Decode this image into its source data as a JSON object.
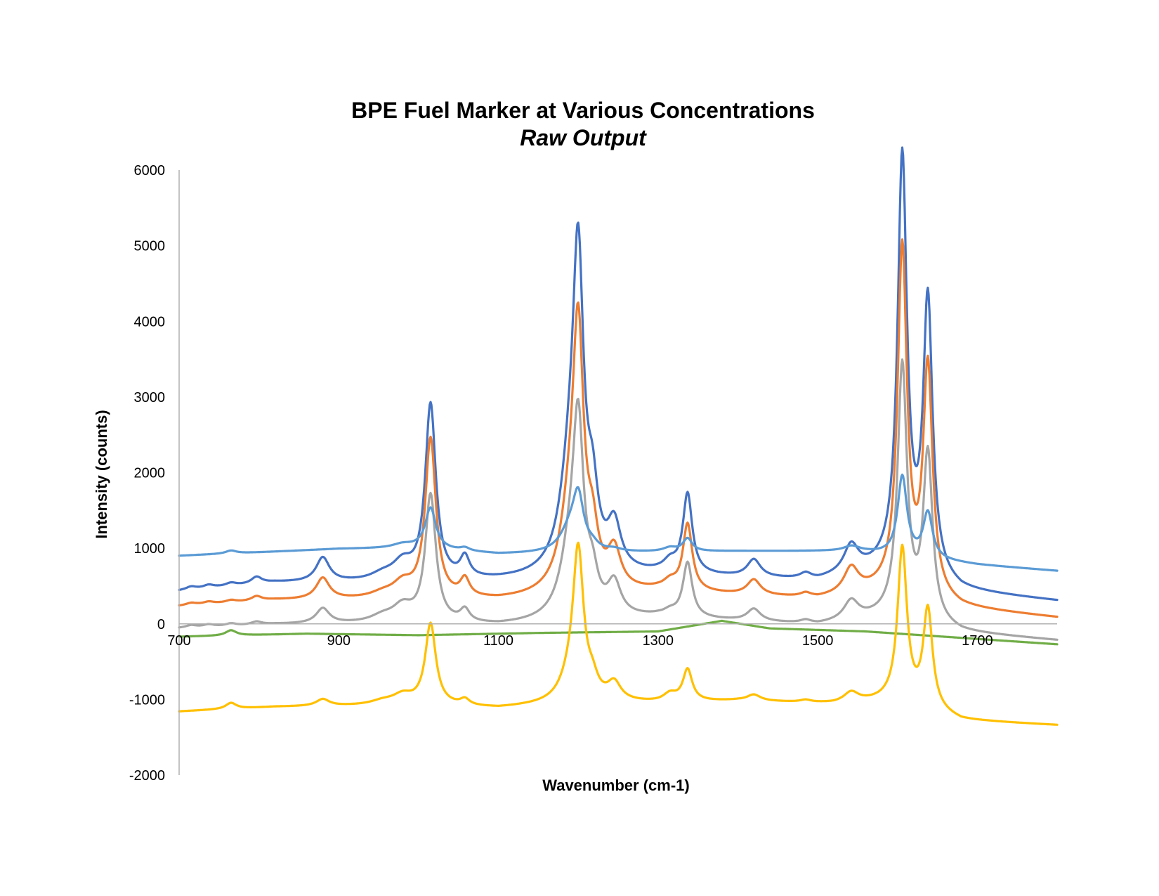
{
  "chart_data": {
    "type": "line",
    "title": "BPE Fuel Marker at Various Concentrations",
    "subtitle": "Raw Output",
    "xlabel": "Wavenumber (cm-1)",
    "ylabel": "Intensity (counts)",
    "xlim": [
      700,
      1800
    ],
    "ylim": [
      -2000,
      6000
    ],
    "x_ticks": [
      700,
      900,
      1100,
      1300,
      1500,
      1700
    ],
    "y_ticks": [
      6000,
      5000,
      4000,
      3000,
      2000,
      1000,
      0,
      -1000,
      -2000
    ],
    "grid": false,
    "legend": "none",
    "peaks": [
      {
        "c": 715,
        "w": 8
      },
      {
        "c": 737,
        "w": 8
      },
      {
        "c": 765,
        "w": 8
      },
      {
        "c": 797,
        "w": 8
      },
      {
        "c": 880,
        "w": 10
      },
      {
        "c": 955,
        "w": 18
      },
      {
        "c": 980,
        "w": 15
      },
      {
        "c": 1015,
        "w": 8
      },
      {
        "c": 1058,
        "w": 7
      },
      {
        "c": 1190,
        "w": 15
      },
      {
        "c": 1200,
        "w": 8
      },
      {
        "c": 1218,
        "w": 8
      },
      {
        "c": 1245,
        "w": 10
      },
      {
        "c": 1315,
        "w": 10
      },
      {
        "c": 1337,
        "w": 7
      },
      {
        "c": 1420,
        "w": 10
      },
      {
        "c": 1485,
        "w": 8
      },
      {
        "c": 1542,
        "w": 11
      },
      {
        "c": 1606,
        "w": 7
      },
      {
        "c": 1638,
        "w": 7
      }
    ],
    "series": [
      {
        "color": "#4472C4",
        "baseline": [
          [
            700,
            430
          ],
          [
            820,
            540
          ],
          [
            1000,
            540
          ],
          [
            1100,
            560
          ],
          [
            1300,
            640
          ],
          [
            1500,
            560
          ],
          [
            1600,
            740
          ],
          [
            1680,
            420
          ],
          [
            1800,
            300
          ]
        ],
        "amplitudes": [
          40,
          40,
          40,
          90,
          320,
          80,
          220,
          2320,
          270,
          1200,
          3700,
          800,
          590,
          130,
          1050,
          230,
          70,
          360,
          5400,
          3600
        ]
      },
      {
        "color": "#ED7D31",
        "baseline": [
          [
            700,
            230
          ],
          [
            820,
            310
          ],
          [
            1000,
            320
          ],
          [
            1100,
            300
          ],
          [
            1300,
            420
          ],
          [
            1500,
            320
          ],
          [
            1600,
            450
          ],
          [
            1680,
            200
          ],
          [
            1800,
            80
          ]
        ],
        "amplitudes": [
          30,
          30,
          30,
          60,
          280,
          60,
          180,
          2100,
          230,
          950,
          3100,
          580,
          500,
          100,
          880,
          200,
          50,
          330,
          4500,
          3000
        ]
      },
      {
        "color": "#A5A5A5",
        "baseline": [
          [
            700,
            -60
          ],
          [
            820,
            -10
          ],
          [
            1000,
            0
          ],
          [
            1100,
            -30
          ],
          [
            1300,
            80
          ],
          [
            1500,
            -20
          ],
          [
            1600,
            100
          ],
          [
            1680,
            -120
          ],
          [
            1800,
            -220
          ]
        ],
        "amplitudes": [
          30,
          30,
          30,
          40,
          200,
          80,
          200,
          1680,
          160,
          800,
          2300,
          400,
          420,
          60,
          720,
          160,
          40,
          250,
          3300,
          2200
        ]
      },
      {
        "color": "#5B9BD5",
        "baseline": [
          [
            700,
            900
          ],
          [
            900,
            990
          ],
          [
            1000,
            1000
          ],
          [
            1100,
            920
          ],
          [
            1250,
            940
          ],
          [
            1400,
            960
          ],
          [
            1550,
            960
          ],
          [
            1700,
            780
          ],
          [
            1800,
            700
          ]
        ],
        "amplitudes": [
          0,
          0,
          40,
          0,
          0,
          0,
          50,
          540,
          40,
          300,
          650,
          60,
          30,
          50,
          170,
          0,
          0,
          60,
          1050,
          600
        ]
      },
      {
        "color": "#70AD47",
        "baseline": [
          [
            700,
            -170
          ],
          [
            860,
            -130
          ],
          [
            1000,
            -150
          ],
          [
            1150,
            -120
          ],
          [
            1300,
            -100
          ],
          [
            1380,
            40
          ],
          [
            1440,
            -60
          ],
          [
            1560,
            -100
          ],
          [
            1800,
            -270
          ]
        ],
        "amplitudes": [
          0,
          0,
          70,
          0,
          0,
          0,
          0,
          0,
          0,
          0,
          0,
          0,
          0,
          0,
          0,
          0,
          0,
          0,
          0,
          0
        ]
      },
      {
        "color": "#FFC000",
        "baseline": [
          [
            700,
            -1160
          ],
          [
            820,
            -1100
          ],
          [
            1000,
            -1080
          ],
          [
            1100,
            -1120
          ],
          [
            1200,
            -1050
          ],
          [
            1300,
            -1050
          ],
          [
            1400,
            -1020
          ],
          [
            1520,
            -1060
          ],
          [
            1600,
            -1020
          ],
          [
            1680,
            -1280
          ],
          [
            1800,
            -1340
          ]
        ],
        "amplitudes": [
          0,
          0,
          80,
          0,
          90,
          50,
          120,
          1070,
          80,
          250,
          1900,
          200,
          230,
          100,
          420,
          80,
          30,
          130,
          2020,
          1300
        ]
      }
    ]
  }
}
